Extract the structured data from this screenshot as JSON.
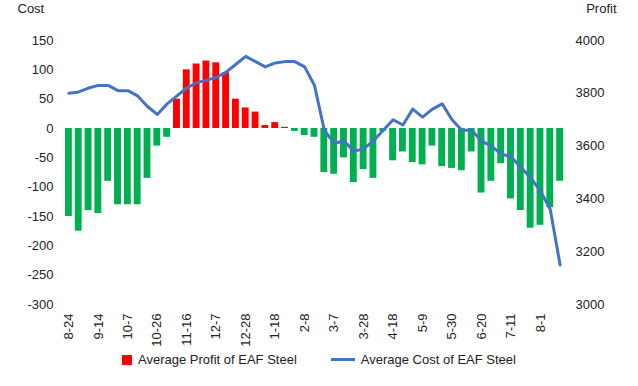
{
  "chart_data": {
    "type": "bar",
    "categories": [
      "8-24",
      null,
      null,
      "9-14",
      null,
      null,
      "10-7",
      null,
      null,
      "10-26",
      null,
      null,
      "11-16",
      null,
      null,
      "12-7",
      null,
      null,
      "12-28",
      null,
      null,
      "1-18",
      null,
      null,
      "2-8",
      null,
      null,
      "3-7",
      null,
      null,
      "3-28",
      null,
      null,
      "4-18",
      null,
      null,
      "5-9",
      null,
      null,
      "5-30",
      null,
      null,
      "6-20",
      null,
      null,
      "7-11",
      null,
      null,
      "8-1",
      null,
      null
    ],
    "series": [
      {
        "name": "Average Profit of EAF Steel",
        "type": "bar",
        "color": "#ff0000",
        "colors": [
          "#00b050",
          "#00b050",
          "#00b050",
          "#00b050",
          "#00b050",
          "#00b050",
          "#00b050",
          "#00b050",
          "#00b050",
          "#00b050",
          "#00b050",
          "#ff0000",
          "#ff0000",
          "#ff0000",
          "#ff0000",
          "#ff0000",
          "#ff0000",
          "#ff0000",
          "#ff0000",
          "#ff0000",
          "#ff0000",
          "#ff0000",
          "#ff0000",
          "#00b050",
          "#00b050",
          "#00b050",
          "#00b050",
          "#00b050",
          "#00b050",
          "#00b050",
          "#00b050",
          "#00b050",
          "#00b050",
          "#00b050",
          "#00b050",
          "#00b050",
          "#00b050",
          "#00b050",
          "#00b050",
          "#00b050",
          "#00b050",
          "#00b050",
          "#00b050",
          "#00b050",
          "#00b050",
          "#00b050",
          "#00b050",
          "#00b050",
          "#00b050",
          "#00b050",
          "#00b050"
        ],
        "values": [
          -150,
          -175,
          -140,
          -145,
          -90,
          -130,
          -130,
          -130,
          -85,
          -30,
          -15,
          50,
          100,
          110,
          115,
          112,
          95,
          50,
          35,
          28,
          5,
          10,
          2,
          -5,
          -12,
          -15,
          -75,
          -78,
          -50,
          -92,
          -70,
          -85,
          -5,
          -55,
          -40,
          -58,
          -62,
          -30,
          -65,
          -68,
          -72,
          -40,
          -110,
          -90,
          -60,
          -120,
          -140,
          -170,
          -165,
          -135,
          -90
        ]
      },
      {
        "name": "Average Cost of EAF Steel",
        "type": "line",
        "axis": "y2",
        "color": "#4472c4",
        "values": [
          3800,
          3805,
          3820,
          3830,
          3830,
          3810,
          3810,
          3790,
          3750,
          3720,
          3760,
          3790,
          3820,
          3840,
          3850,
          3860,
          3880,
          3910,
          3940,
          3920,
          3900,
          3915,
          3920,
          3920,
          3900,
          3830,
          3660,
          3610,
          3620,
          3580,
          3590,
          3620,
          3660,
          3700,
          3680,
          3740,
          3710,
          3740,
          3760,
          3700,
          3660,
          3660,
          3620,
          3600,
          3570,
          3560,
          3520,
          3480,
          3430,
          3360,
          3150
        ]
      }
    ],
    "ylabel": "Cost",
    "y2label": "Profit",
    "ylim": [
      -300,
      150
    ],
    "yticks": [
      -300,
      -250,
      -200,
      -150,
      -100,
      -50,
      0,
      50,
      100,
      150
    ],
    "y2lim": [
      3000,
      4000
    ],
    "y2ticks": [
      3000,
      3200,
      3400,
      3600,
      3800,
      4000
    ],
    "legend": "bottom",
    "grid": false
  }
}
